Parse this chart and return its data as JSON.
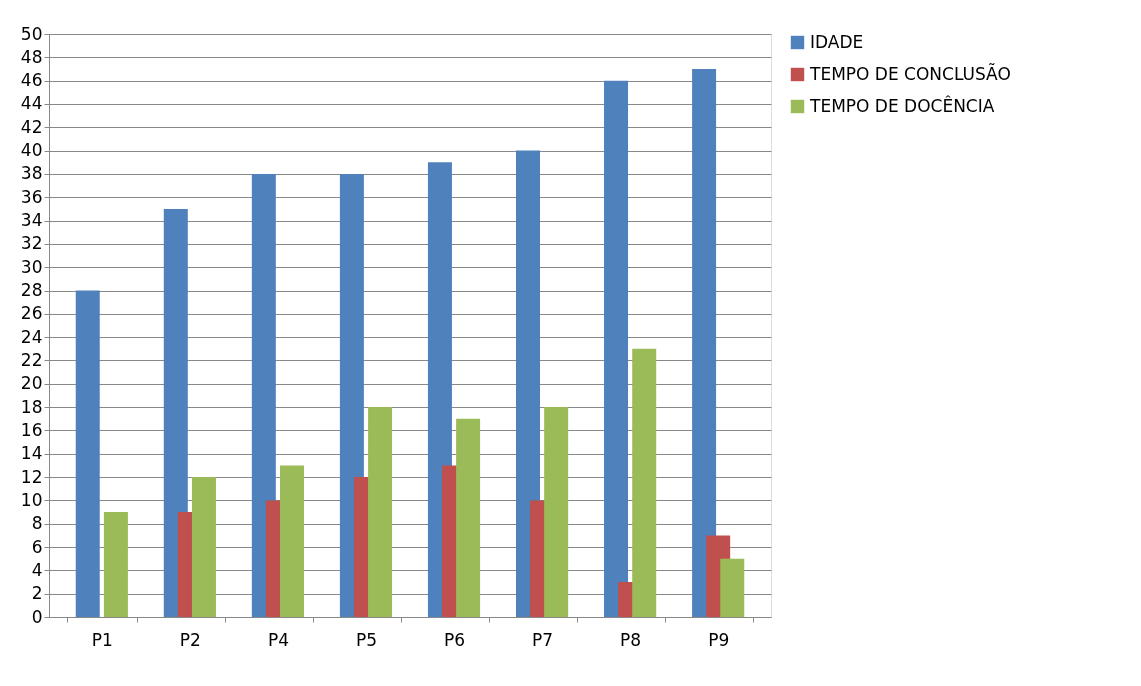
{
  "chart_data": {
    "type": "bar",
    "categories": [
      "P1",
      "P2",
      "P4",
      "P5",
      "P6",
      "P7",
      "P8",
      "P9"
    ],
    "series": [
      {
        "name": "IDADE",
        "color": "#4f81bd",
        "values": [
          28,
          35,
          38,
          38,
          39,
          40,
          46,
          47
        ]
      },
      {
        "name": "TEMPO DE CONCLUSÃO",
        "color": "#c0504d",
        "values": [
          null,
          9,
          10,
          12,
          13,
          10,
          3,
          7
        ]
      },
      {
        "name": "TEMPO DE DOCÊNCIA",
        "color": "#9bbb59",
        "values": [
          9,
          12,
          13,
          18,
          17,
          18,
          23,
          5
        ]
      }
    ],
    "ylim": [
      0,
      50
    ],
    "yticks": [
      0,
      2,
      4,
      6,
      8,
      10,
      12,
      14,
      16,
      18,
      20,
      22,
      24,
      26,
      28,
      30,
      32,
      34,
      36,
      38,
      40,
      42,
      44,
      46,
      48,
      50
    ],
    "grid": "y",
    "legend": "right"
  }
}
